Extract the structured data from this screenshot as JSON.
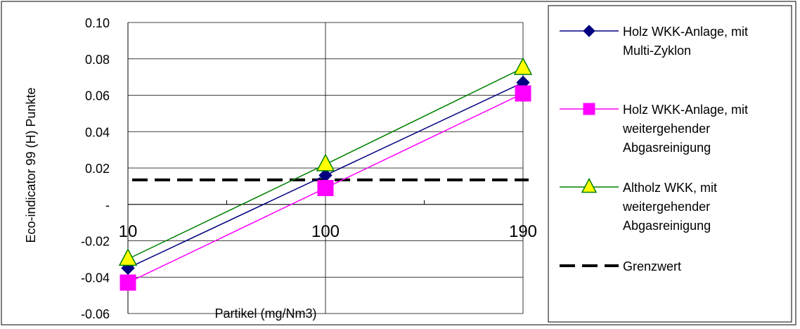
{
  "chart_data": {
    "type": "line",
    "categories": [
      "10",
      "100",
      "190"
    ],
    "xlabel": "Partikel (mg/Nm3)",
    "ylabel": "Eco-indicator 99 (H) Punkte",
    "ylim": [
      -0.06,
      0.1
    ],
    "y_ticks": [
      "0.10",
      "0.08",
      "0.06",
      "0.04",
      "0.02",
      "-",
      "-0.02",
      "-0.04",
      "-0.06"
    ],
    "grid": true,
    "legend_position": "right",
    "series": [
      {
        "name": "Holz WKK-Anlage, mit Multi-Zyklon",
        "legend_lines": [
          "Holz WKK-Anlage, mit",
          "Multi-Zyklon"
        ],
        "values": [
          -0.035,
          0.016,
          0.067
        ],
        "color": "#000080",
        "marker": "diamond",
        "marker_fill": "#000080"
      },
      {
        "name": "Holz WKK-Anlage, mit weitergehender Abgasreinigung",
        "legend_lines": [
          "Holz WKK-Anlage, mit",
          "weitergehender",
          "Abgasreinigung"
        ],
        "values": [
          -0.043,
          0.009,
          0.061
        ],
        "color": "#ff00ff",
        "marker": "square",
        "marker_fill": "#ff00ff"
      },
      {
        "name": "Altholz WKK, mit weitergehender Abgasreinigung",
        "legend_lines": [
          "Altholz WKK, mit",
          "weitergehender",
          "Abgasreinigung"
        ],
        "values": [
          -0.03,
          0.022,
          0.075
        ],
        "color": "#008000",
        "marker": "triangle",
        "marker_fill": "#ffff00"
      }
    ],
    "reference_line": {
      "name": "Grenzwert",
      "value": 0.0135,
      "color": "#000000",
      "style": "dashed"
    }
  }
}
